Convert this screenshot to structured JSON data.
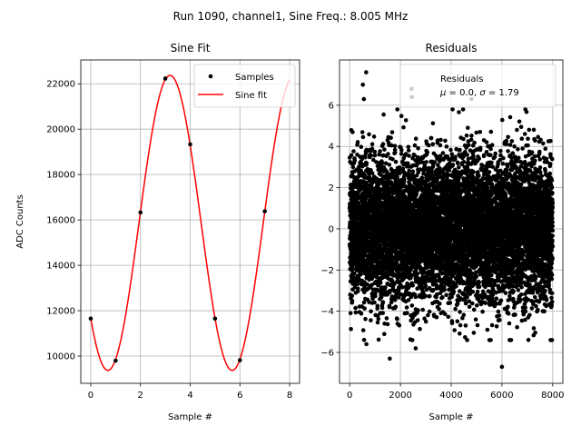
{
  "suptitle": "Run 1090, channel1, Sine Freq.: 8.005 MHz",
  "chart_data": [
    {
      "type": "line",
      "title": "Sine Fit",
      "xlabel": "Sample #",
      "ylabel": "ADC Counts",
      "xlim": [
        -0.4,
        8.4
      ],
      "ylim": [
        8800,
        23050
      ],
      "xticks": [
        0,
        2,
        4,
        6,
        8
      ],
      "yticks": [
        10000,
        12000,
        14000,
        16000,
        18000,
        20000,
        22000
      ],
      "grid": true,
      "legend_placement": "top-right",
      "series": [
        {
          "name": "Samples",
          "kind": "scatter",
          "color": "#000000",
          "x": [
            0,
            1,
            2,
            3,
            4,
            5,
            6,
            7
          ],
          "y": [
            11650,
            9800,
            16330,
            22230,
            19330,
            11650,
            9820,
            16380
          ]
        },
        {
          "name": "Sine fit",
          "kind": "line",
          "color": "#ff0000",
          "model": {
            "offset": 15870,
            "amplitude": 6500,
            "period": 5,
            "phase_sample": 0.69
          },
          "x_range": [
            0,
            8
          ]
        }
      ]
    },
    {
      "type": "scatter",
      "title": "Residuals",
      "xlabel": "Sample #",
      "xlim": [
        -400,
        8400
      ],
      "ylim": [
        -7.5,
        8.2
      ],
      "xticks": [
        0,
        2000,
        4000,
        6000,
        8000
      ],
      "yticks": [
        -6,
        -4,
        -2,
        0,
        2,
        4,
        6
      ],
      "grid": true,
      "legend_placement": "top-right",
      "series": [
        {
          "name": "Residuals",
          "color": "#000000",
          "n_points": 8000,
          "sigma": 1.79,
          "extremes": [
            [
              650,
              7.6
            ],
            [
              520,
              7.0
            ],
            [
              560,
              6.3
            ],
            [
              2440,
              6.8
            ],
            [
              2450,
              6.4
            ],
            [
              4800,
              6.3
            ],
            [
              1580,
              -6.3
            ],
            [
              6000,
              -6.7
            ],
            [
              660,
              -5.6
            ],
            [
              2600,
              -5.8
            ]
          ]
        }
      ],
      "legend_stats": {
        "mu": "0.0",
        "sigma": "1.79"
      }
    }
  ]
}
